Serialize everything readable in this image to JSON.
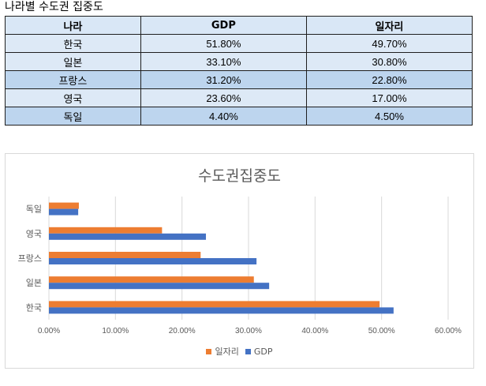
{
  "sheet": {
    "title": "나라별 수도권 집중도"
  },
  "table": {
    "headers": [
      "나라",
      "GDP",
      "일자리"
    ],
    "rows": [
      {
        "country": "한국",
        "gdp": "51.80%",
        "jobs": "49.70%"
      },
      {
        "country": "일본",
        "gdp": "33.10%",
        "jobs": "30.80%"
      },
      {
        "country": "프랑스",
        "gdp": "31.20%",
        "jobs": "22.80%"
      },
      {
        "country": "영국",
        "gdp": "23.60%",
        "jobs": "17.00%"
      },
      {
        "country": "독일",
        "gdp": "4.40%",
        "jobs": "4.50%"
      }
    ]
  },
  "chart_data": {
    "type": "bar",
    "orientation": "horizontal",
    "title": "수도권집중도",
    "categories": [
      "한국",
      "일본",
      "프랑스",
      "영국",
      "독일"
    ],
    "series": [
      {
        "name": "일자리",
        "values": [
          49.7,
          30.8,
          22.8,
          17.0,
          4.5
        ],
        "color": "#ed7d31"
      },
      {
        "name": "GDP",
        "values": [
          51.8,
          33.1,
          31.2,
          23.6,
          4.4
        ],
        "color": "#4472c4"
      }
    ],
    "xlim": [
      0,
      60
    ],
    "x_ticks": [
      0,
      10,
      20,
      30,
      40,
      50,
      60
    ],
    "x_tick_labels": [
      "0.00%",
      "10.00%",
      "20.00%",
      "30.00%",
      "40.00%",
      "50.00%",
      "60.00%"
    ],
    "grid": true,
    "legend_position": "bottom"
  }
}
